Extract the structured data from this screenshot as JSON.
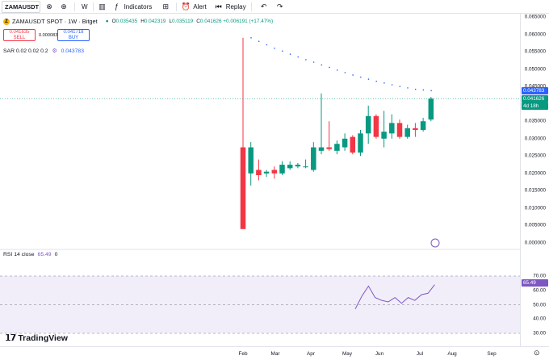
{
  "toolbar": {
    "symbol": "ZAMAUSDT",
    "interval": "W",
    "indicators_label": "Indicators",
    "alert_label": "Alert",
    "replay_label": "Replay"
  },
  "legend": {
    "title": "ZAMAUSDT SPOT · 1W · Bitget",
    "o_label": "O",
    "o_val": "0.035435",
    "h_label": "H",
    "h_val": "0.042319",
    "l_label": "L",
    "l_val": "0.035119",
    "c_label": "C",
    "c_val": "0.041626 +0.006191 (+17.47%)",
    "sell_price": "0.041635",
    "sell_label": "SELL",
    "spread": "0.000083",
    "buy_price": "0.041718",
    "buy_label": "BUY",
    "sar_label": "SAR 0.02 0.02 0.2",
    "sar_value": "0.043783",
    "rsi_label": "RSI 14 close",
    "rsi_value": "65.49",
    "rsi_zero": "0"
  },
  "price_axis": {
    "ticks": [
      "0.065000",
      "0.060000",
      "0.055000",
      "0.050000",
      "0.045000",
      "0.040000",
      "0.035000",
      "0.030000",
      "0.025000",
      "0.020000",
      "0.015000",
      "0.010000",
      "0.005000",
      "0.000000"
    ],
    "sar_tag": "0.043783",
    "last_tag": "0.041626",
    "countdown": "4d 18h"
  },
  "rsi_axis": {
    "ticks": [
      "70.00",
      "60.00",
      "50.00",
      "40.00",
      "30.00"
    ],
    "rsi_tag": "65.49"
  },
  "time_axis": {
    "labels": [
      "Feb",
      "Mar",
      "Apr",
      "May",
      "Jun",
      "Jul",
      "Aug",
      "Sep"
    ]
  },
  "brand": {
    "name": "TradingView"
  },
  "colors": {
    "up": "#089981",
    "down": "#f23645",
    "sar": "#2962ff",
    "rsi": "#7e57c2"
  },
  "chart_data": {
    "type": "candlestick",
    "candles": [
      {
        "o": 0.0275,
        "h": 0.059,
        "l": 0.004,
        "c": 0.004
      },
      {
        "o": 0.02,
        "h": 0.029,
        "l": 0.0165,
        "c": 0.0275
      },
      {
        "o": 0.021,
        "h": 0.024,
        "l": 0.018,
        "c": 0.0195
      },
      {
        "o": 0.02,
        "h": 0.021,
        "l": 0.019,
        "c": 0.0205
      },
      {
        "o": 0.021,
        "h": 0.022,
        "l": 0.0185,
        "c": 0.02
      },
      {
        "o": 0.02,
        "h": 0.0235,
        "l": 0.0195,
        "c": 0.0225
      },
      {
        "o": 0.0215,
        "h": 0.0235,
        "l": 0.021,
        "c": 0.0225
      },
      {
        "o": 0.022,
        "h": 0.023,
        "l": 0.0215,
        "c": 0.0225
      },
      {
        "o": 0.022,
        "h": 0.024,
        "l": 0.0215,
        "c": 0.022
      },
      {
        "o": 0.021,
        "h": 0.029,
        "l": 0.0205,
        "c": 0.0275
      },
      {
        "o": 0.0265,
        "h": 0.043,
        "l": 0.0255,
        "c": 0.0275
      },
      {
        "o": 0.0275,
        "h": 0.035,
        "l": 0.0265,
        "c": 0.027
      },
      {
        "o": 0.0265,
        "h": 0.0295,
        "l": 0.0255,
        "c": 0.0285
      },
      {
        "o": 0.0275,
        "h": 0.0315,
        "l": 0.0265,
        "c": 0.03
      },
      {
        "o": 0.0305,
        "h": 0.031,
        "l": 0.0255,
        "c": 0.026
      },
      {
        "o": 0.026,
        "h": 0.0325,
        "l": 0.025,
        "c": 0.0315
      },
      {
        "o": 0.0315,
        "h": 0.0395,
        "l": 0.0285,
        "c": 0.0365
      },
      {
        "o": 0.0365,
        "h": 0.037,
        "l": 0.03,
        "c": 0.0305
      },
      {
        "o": 0.03,
        "h": 0.038,
        "l": 0.0275,
        "c": 0.032
      },
      {
        "o": 0.0315,
        "h": 0.037,
        "l": 0.03,
        "c": 0.0345
      },
      {
        "o": 0.0345,
        "h": 0.0355,
        "l": 0.03,
        "c": 0.0305
      },
      {
        "o": 0.0305,
        "h": 0.034,
        "l": 0.03,
        "c": 0.033
      },
      {
        "o": 0.033,
        "h": 0.0345,
        "l": 0.0305,
        "c": 0.0325
      },
      {
        "o": 0.0325,
        "h": 0.036,
        "l": 0.032,
        "c": 0.035
      },
      {
        "o": 0.0355,
        "h": 0.042,
        "l": 0.035,
        "c": 0.0415
      }
    ],
    "sar": [
      0.059,
      0.058,
      0.057,
      0.056,
      0.0552,
      0.0543,
      0.0535,
      0.0527,
      0.052,
      0.0512,
      0.0505,
      0.0497,
      0.049,
      0.0483,
      0.0477,
      0.0471,
      0.0465,
      0.046,
      0.0455,
      0.045,
      0.0446,
      0.0442,
      0.044,
      0.0438
    ],
    "rsi": [
      47,
      56,
      63,
      55,
      53,
      52,
      55,
      51,
      55,
      53,
      57,
      58,
      64
    ],
    "y_range": [
      0,
      0.065
    ],
    "rsi_range": [
      30,
      70
    ]
  }
}
